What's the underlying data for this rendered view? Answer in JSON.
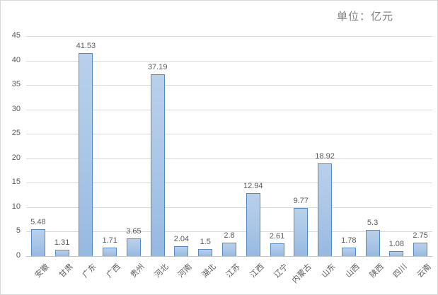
{
  "title": "单位：亿元",
  "chart_data": {
    "type": "bar",
    "categories": [
      "安徽",
      "甘肃",
      "广东",
      "广西",
      "贵州",
      "河北",
      "河南",
      "湖北",
      "江苏",
      "江西",
      "辽宁",
      "内蒙古",
      "山东",
      "山西",
      "陕西",
      "四川",
      "云南"
    ],
    "values": [
      5.48,
      1.31,
      41.53,
      1.71,
      3.65,
      37.19,
      2.04,
      1.5,
      2.8,
      12.94,
      2.61,
      9.77,
      18.92,
      1.78,
      5.3,
      1.08,
      2.75
    ],
    "data_labels": [
      "5.48",
      "1.31",
      "41.53",
      "1.71",
      "3.65",
      "37.19",
      "2.04",
      "1.5",
      "2.8",
      "12.94",
      "2.61",
      "9.77",
      "18.92",
      "1.78",
      "5.3",
      "1.08",
      "2.75"
    ],
    "title": "单位：亿元",
    "xlabel": "",
    "ylabel": "",
    "ylim": [
      0,
      45
    ],
    "ytick_step": 5,
    "yticks": [
      "0",
      "5",
      "10",
      "15",
      "20",
      "25",
      "30",
      "35",
      "40",
      "45"
    ],
    "grid": true,
    "legend": false,
    "legend_position": "none"
  },
  "colors": {
    "bar_fill_top": "#b9d0eb",
    "bar_fill_bottom": "#96b9e0",
    "bar_border": "#5289c7",
    "gridline": "#d9d9d9",
    "axis_line": "#c6c6c6",
    "tick_label": "#595959",
    "value_label": "#595959",
    "title_text": "#7f7f7f",
    "background": "#ffffff",
    "chart_border": "#d8d8d8"
  }
}
